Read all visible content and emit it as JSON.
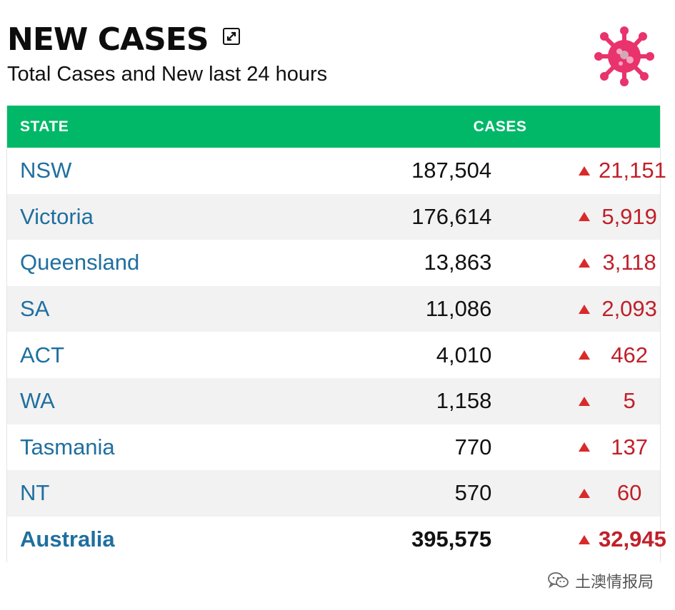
{
  "header": {
    "title": "NEW CASES",
    "subtitle": "Total Cases and New last 24 hours"
  },
  "table": {
    "columns": [
      "STATE",
      "CASES"
    ],
    "rows": [
      {
        "state": "NSW",
        "cases": "187,504",
        "new": "21,151"
      },
      {
        "state": "Victoria",
        "cases": "176,614",
        "new": "5,919"
      },
      {
        "state": "Queensland",
        "cases": "13,863",
        "new": "3,118"
      },
      {
        "state": "SA",
        "cases": "11,086",
        "new": "2,093"
      },
      {
        "state": "ACT",
        "cases": "4,010",
        "new": "462"
      },
      {
        "state": "WA",
        "cases": "1,158",
        "new": "5"
      },
      {
        "state": "Tasmania",
        "cases": "770",
        "new": "137"
      },
      {
        "state": "NT",
        "cases": "570",
        "new": "60"
      }
    ],
    "total": {
      "state": "Australia",
      "cases": "395,575",
      "new": "32,945"
    }
  },
  "icons": {
    "expand": "expand-icon",
    "virus": "virus-icon",
    "up_arrow": "triangle-up-icon",
    "wechat": "wechat-icon"
  },
  "colors": {
    "header_bg": "#00b868",
    "state_link": "#1f6f9f",
    "increase": "#c0202a",
    "virus": "#e8336d"
  },
  "watermark": "土澳情报局"
}
